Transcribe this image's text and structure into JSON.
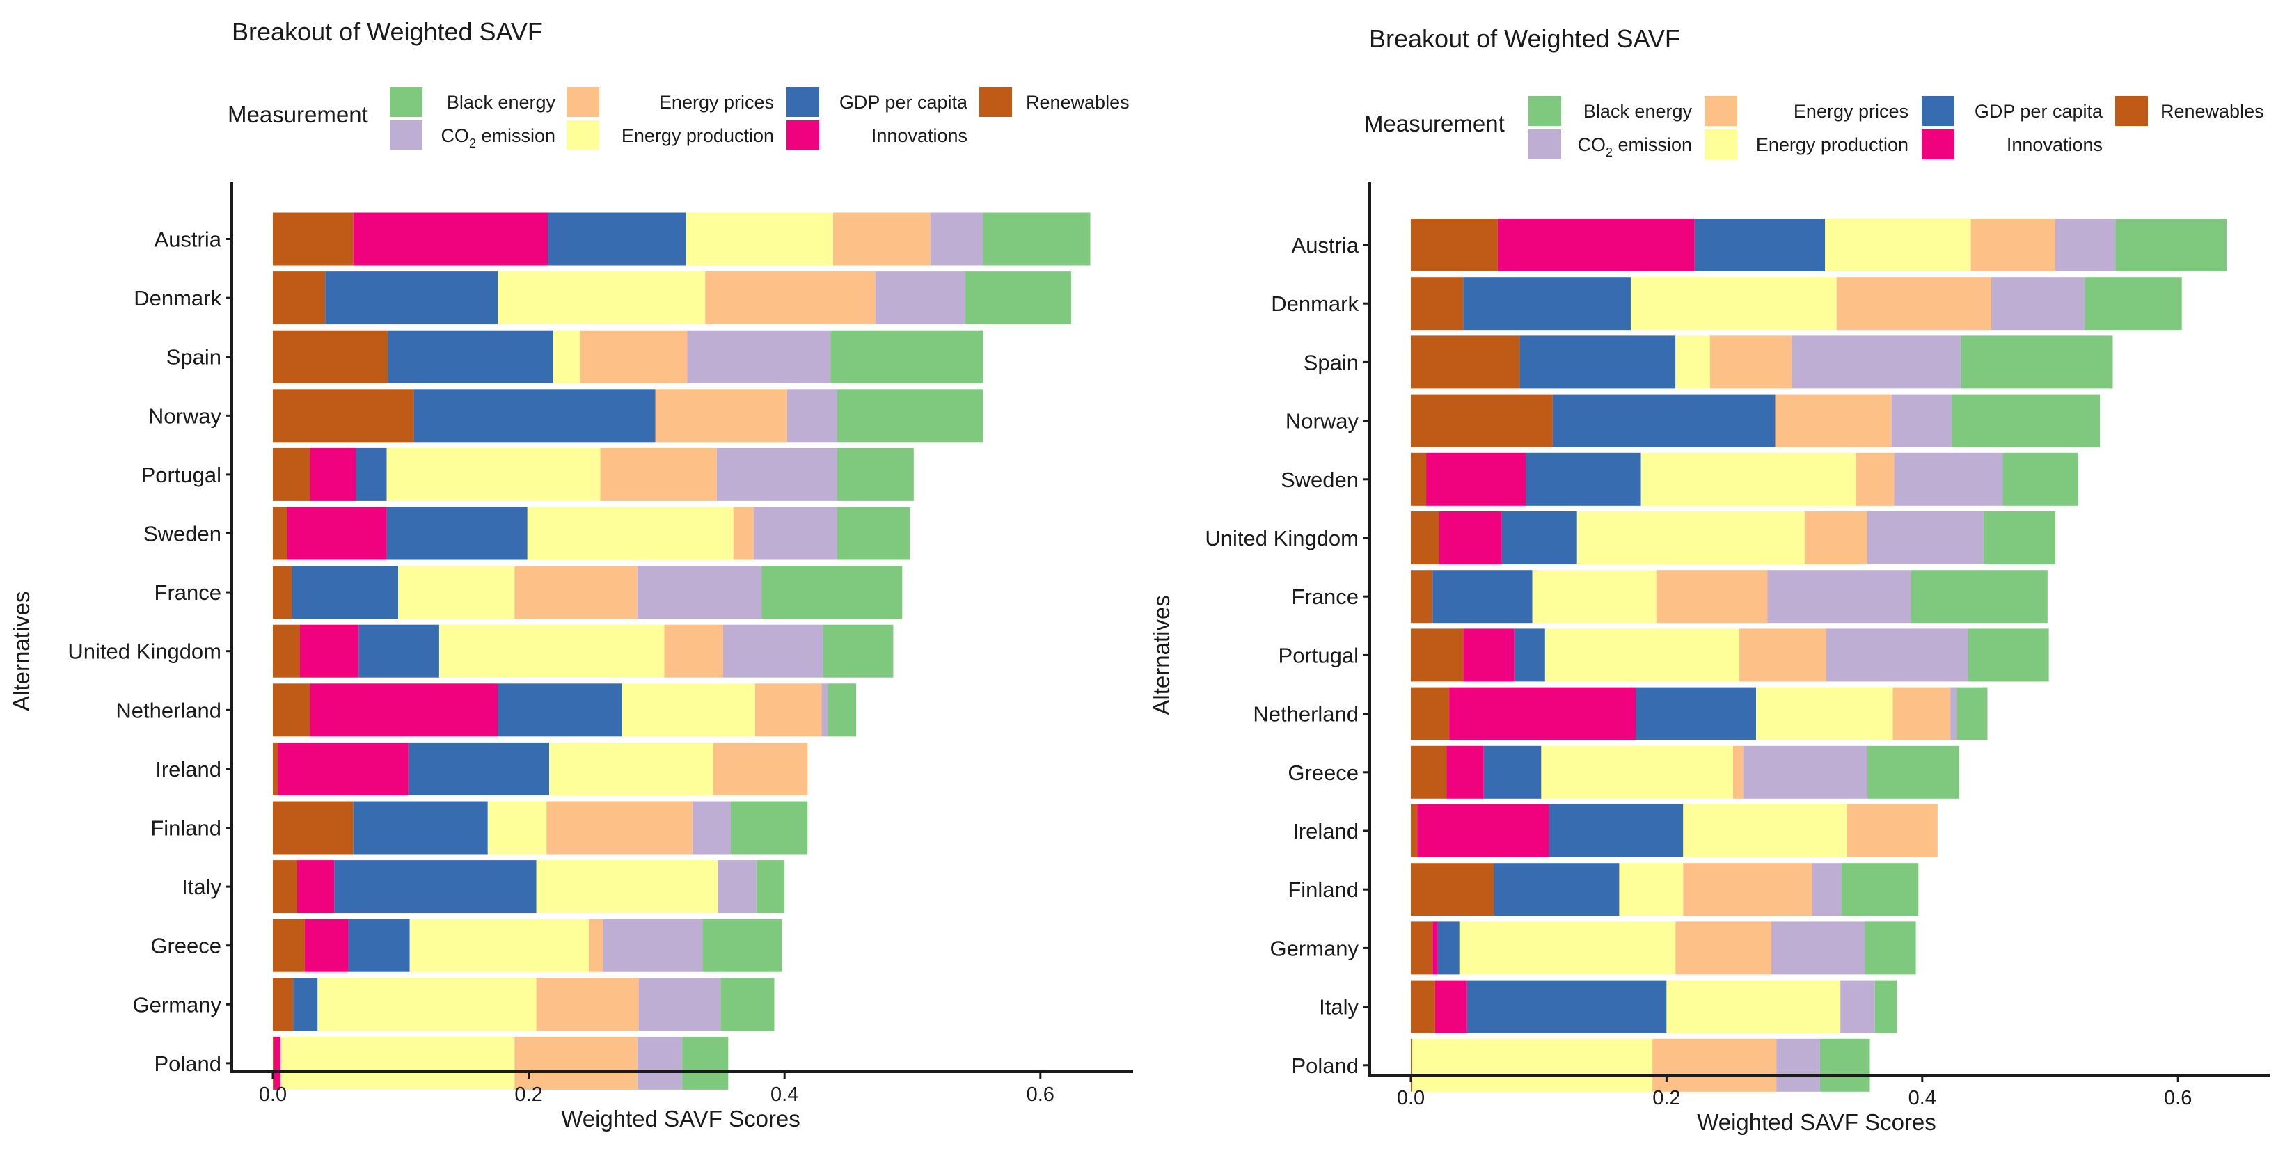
{
  "chart_data": [
    {
      "type": "bar",
      "orientation": "horizontal",
      "stacked": true,
      "title": "Breakout of Weighted SAVF",
      "xlabel": "Weighted SAVF Scores",
      "ylabel": "Alternatives",
      "xlim": [
        0,
        0.68
      ],
      "xticks": [
        "0.0",
        "0.2",
        "0.4",
        "0.6"
      ],
      "xtick_values": [
        0,
        0.2,
        0.4,
        0.6
      ],
      "legend": {
        "title": "Measurement",
        "placement": "top",
        "items": [
          {
            "key": "Black energy",
            "label": "Black energy",
            "color": "#7fc97f",
            "column": 0,
            "row": 0
          },
          {
            "key": "CO2 emission",
            "label_main": "CO",
            "label_sub": "2",
            "label_rest": " emission",
            "color": "#beaed4",
            "column": 0,
            "row": 1
          },
          {
            "key": "Energy prices",
            "label": "Energy prices",
            "color": "#fdc086",
            "column": 1,
            "row": 0
          },
          {
            "key": "Energy production",
            "label": "Energy production",
            "color": "#ffff99",
            "column": 1,
            "row": 1
          },
          {
            "key": "GDP per capita",
            "label": "GDP per capita",
            "color": "#386cb0",
            "column": 2,
            "row": 0
          },
          {
            "key": "Innovations",
            "label": "Innovations",
            "color": "#f0027f",
            "column": 2,
            "row": 1
          },
          {
            "key": "Renewables",
            "label": "Renewables",
            "color": "#bf5b17",
            "column": 3,
            "row": 0
          }
        ]
      },
      "stack_order": [
        "Renewables",
        "Innovations",
        "GDP per capita",
        "Energy production",
        "Energy prices",
        "CO2 emission",
        "Black energy"
      ],
      "categories": [
        "Austria",
        "Denmark",
        "Spain",
        "Norway",
        "Portugal",
        "Sweden",
        "France",
        "United Kingdom",
        "Netherland",
        "Ireland",
        "Finland",
        "Italy",
        "Greece",
        "Germany",
        "Poland"
      ],
      "series": [
        {
          "name": "Renewables",
          "color": "#bf5b17",
          "values": [
            0.063,
            0.041,
            0.09,
            0.11,
            0.029,
            0.011,
            0.015,
            0.021,
            0.029,
            0.004,
            0.063,
            0.019,
            0.025,
            0.016,
            0.001
          ]
        },
        {
          "name": "Innovations",
          "color": "#f0027f",
          "values": [
            0.152,
            0.0,
            0.0,
            0.0,
            0.036,
            0.078,
            0.0,
            0.046,
            0.147,
            0.102,
            0.0,
            0.029,
            0.034,
            0.0,
            0.005
          ]
        },
        {
          "name": "GDP per capita",
          "color": "#386cb0",
          "values": [
            0.108,
            0.135,
            0.129,
            0.189,
            0.024,
            0.11,
            0.083,
            0.063,
            0.097,
            0.11,
            0.105,
            0.158,
            0.048,
            0.019,
            0.0
          ]
        },
        {
          "name": "Energy production",
          "color": "#ffff99",
          "values": [
            0.115,
            0.162,
            0.021,
            0.0,
            0.167,
            0.161,
            0.091,
            0.176,
            0.104,
            0.128,
            0.046,
            0.142,
            0.14,
            0.171,
            0.183
          ]
        },
        {
          "name": "Energy prices",
          "color": "#fdc086",
          "values": [
            0.076,
            0.133,
            0.084,
            0.103,
            0.091,
            0.016,
            0.096,
            0.046,
            0.052,
            0.074,
            0.114,
            0.0,
            0.011,
            0.08,
            0.096
          ]
        },
        {
          "name": "CO2 emission",
          "color": "#beaed4",
          "values": [
            0.041,
            0.07,
            0.112,
            0.039,
            0.094,
            0.065,
            0.097,
            0.078,
            0.005,
            0.0,
            0.03,
            0.03,
            0.078,
            0.064,
            0.035
          ]
        },
        {
          "name": "Black energy",
          "color": "#7fc97f",
          "values": [
            0.084,
            0.083,
            0.119,
            0.114,
            0.06,
            0.057,
            0.11,
            0.055,
            0.022,
            0.0,
            0.06,
            0.022,
            0.062,
            0.042,
            0.036
          ]
        }
      ]
    },
    {
      "type": "bar",
      "orientation": "horizontal",
      "stacked": true,
      "title": "Breakout of Weighted SAVF",
      "xlabel": "Weighted SAVF Scores",
      "ylabel": "Alternatives",
      "xlim": [
        0,
        0.68
      ],
      "xticks": [
        "0.0",
        "0.2",
        "0.4",
        "0.6"
      ],
      "xtick_values": [
        0,
        0.2,
        0.4,
        0.6
      ],
      "legend": {
        "title": "Measurement",
        "placement": "top",
        "items": [
          {
            "key": "Black energy",
            "label": "Black energy",
            "color": "#7fc97f",
            "column": 0,
            "row": 0
          },
          {
            "key": "CO2 emission",
            "label_main": "CO",
            "label_sub": "2",
            "label_rest": " emission",
            "color": "#beaed4",
            "column": 0,
            "row": 1
          },
          {
            "key": "Energy prices",
            "label": "Energy prices",
            "color": "#fdc086",
            "column": 1,
            "row": 0
          },
          {
            "key": "Energy production",
            "label": "Energy production",
            "color": "#ffff99",
            "column": 1,
            "row": 1
          },
          {
            "key": "GDP per capita",
            "label": "GDP per capita",
            "color": "#386cb0",
            "column": 2,
            "row": 0
          },
          {
            "key": "Innovations",
            "label": "Innovations",
            "color": "#f0027f",
            "column": 2,
            "row": 1
          },
          {
            "key": "Renewables",
            "label": "Renewables",
            "color": "#bf5b17",
            "column": 3,
            "row": 0
          }
        ]
      },
      "stack_order": [
        "Renewables",
        "Innovations",
        "GDP per capita",
        "Energy production",
        "Energy prices",
        "CO2 emission",
        "Black energy"
      ],
      "categories": [
        "Austria",
        "Denmark",
        "Spain",
        "Norway",
        "Sweden",
        "United Kingdom",
        "France",
        "Portugal",
        "Netherland",
        "Greece",
        "Ireland",
        "Finland",
        "Germany",
        "Italy",
        "Poland"
      ],
      "series": [
        {
          "name": "Renewables",
          "color": "#bf5b17",
          "values": [
            0.068,
            0.041,
            0.085,
            0.111,
            0.012,
            0.022,
            0.017,
            0.041,
            0.03,
            0.028,
            0.005,
            0.065,
            0.017,
            0.019,
            0.001
          ]
        },
        {
          "name": "Innovations",
          "color": "#f0027f",
          "values": [
            0.154,
            0.0,
            0.0,
            0.0,
            0.078,
            0.049,
            0.0,
            0.04,
            0.146,
            0.029,
            0.103,
            0.0,
            0.004,
            0.025,
            0.0
          ]
        },
        {
          "name": "GDP per capita",
          "color": "#386cb0",
          "values": [
            0.102,
            0.131,
            0.122,
            0.174,
            0.09,
            0.059,
            0.078,
            0.024,
            0.094,
            0.045,
            0.105,
            0.098,
            0.017,
            0.156,
            0.0
          ]
        },
        {
          "name": "Energy production",
          "color": "#ffff99",
          "values": [
            0.114,
            0.161,
            0.027,
            0.0,
            0.168,
            0.178,
            0.097,
            0.152,
            0.107,
            0.15,
            0.128,
            0.05,
            0.169,
            0.136,
            0.188
          ]
        },
        {
          "name": "Energy prices",
          "color": "#fdc086",
          "values": [
            0.066,
            0.121,
            0.064,
            0.091,
            0.03,
            0.049,
            0.087,
            0.068,
            0.045,
            0.008,
            0.071,
            0.101,
            0.075,
            0.0,
            0.097
          ]
        },
        {
          "name": "CO2 emission",
          "color": "#beaed4",
          "values": [
            0.047,
            0.073,
            0.132,
            0.047,
            0.085,
            0.091,
            0.112,
            0.111,
            0.005,
            0.097,
            0.0,
            0.023,
            0.073,
            0.027,
            0.034
          ]
        },
        {
          "name": "Black energy",
          "color": "#7fc97f",
          "values": [
            0.087,
            0.076,
            0.119,
            0.116,
            0.059,
            0.056,
            0.107,
            0.063,
            0.024,
            0.072,
            0.0,
            0.06,
            0.04,
            0.017,
            0.039
          ]
        }
      ]
    }
  ]
}
